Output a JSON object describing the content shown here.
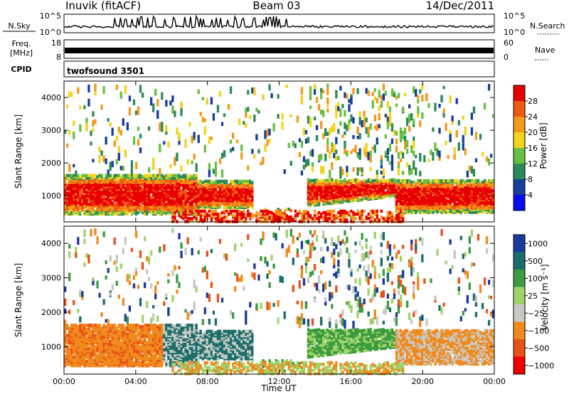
{
  "header": {
    "station": "Inuvik (fitACF)",
    "beam": "Beam 03",
    "date": "14/Dec/2011"
  },
  "strips": {
    "nsky": {
      "label": "N.Sky",
      "ticks": [
        "10^5",
        "10^0"
      ],
      "right_label": "N.Search",
      "right_ticks": [
        "10^5",
        "10^0"
      ]
    },
    "freq": {
      "label_line1": "Freq.",
      "label_line2": "[MHz]",
      "ticks": [
        "18",
        "8"
      ],
      "right_label": "Nave",
      "right_ticks": [
        "60",
        "0"
      ]
    },
    "cpid": {
      "label": "CPID",
      "value": "twofsound 3501"
    }
  },
  "colors": {
    "power": [
      "#0b0bf0",
      "#173e9b",
      "#2b8a5a",
      "#69bf44",
      "#f4d31c",
      "#f49a1a",
      "#ee5a12",
      "#e80000"
    ],
    "velocity": [
      "#ee0000",
      "#e8521a",
      "#f08a1c",
      "#c8c8c4",
      "#9fd36a",
      "#3a9b3f",
      "#1a6e6a",
      "#1c3a9c"
    ]
  },
  "chart_data": [
    {
      "type": "heatmap",
      "name": "power-panel",
      "xlabel": "",
      "ylabel": "Slant Range [km]",
      "x_ticks": [
        "00:00",
        "04:00",
        "08:00",
        "12:00",
        "16:00",
        "20:00",
        "00:00"
      ],
      "y_ticks": [
        "1000",
        "2000",
        "3000",
        "4000"
      ],
      "xlim": [
        0,
        24
      ],
      "ylim": [
        200,
        4500
      ],
      "colorbar": {
        "label": "Power [dB]",
        "tick_labels": [
          "4",
          "8",
          "12",
          "16",
          "20",
          "24",
          "28"
        ]
      }
    },
    {
      "type": "heatmap",
      "name": "velocity-panel",
      "xlabel": "Time UT",
      "ylabel": "Slant Range [km]",
      "x_ticks": [
        "00:00",
        "04:00",
        "08:00",
        "12:00",
        "16:00",
        "20:00",
        "00:00"
      ],
      "y_ticks": [
        "1000",
        "2000",
        "3000",
        "4000"
      ],
      "xlim": [
        0,
        24
      ],
      "ylim": [
        200,
        4500
      ],
      "colorbar": {
        "label": "Velocity [m s⁻¹]",
        "tick_labels": [
          "1000",
          "500",
          "100",
          "25",
          "−25",
          "−100",
          "−500",
          "−1000"
        ]
      }
    }
  ]
}
